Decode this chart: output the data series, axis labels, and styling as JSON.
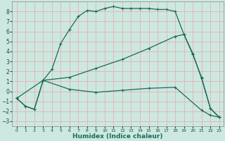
{
  "xlabel": "Humidex (Indice chaleur)",
  "xlim": [
    -0.5,
    23.5
  ],
  "ylim": [
    -3.5,
    9.0
  ],
  "bg_color": "#cce8e0",
  "line_color": "#1a6b5a",
  "grid_color": "#e8b0b0",
  "line1_x": [
    0,
    1,
    2,
    3,
    4,
    5,
    6,
    7,
    8,
    9,
    10,
    11,
    12,
    13,
    14,
    15,
    16,
    17,
    18,
    19,
    20,
    21,
    22,
    23
  ],
  "line1_y": [
    -0.7,
    -1.5,
    -1.8,
    1.1,
    2.2,
    4.8,
    6.2,
    7.5,
    8.1,
    8.0,
    8.3,
    8.5,
    8.3,
    8.3,
    8.3,
    8.3,
    8.2,
    8.2,
    8.0,
    5.7,
    3.7,
    1.4,
    -1.7,
    -2.6
  ],
  "line2_x": [
    0,
    1,
    2,
    3,
    6,
    9,
    12,
    15,
    18,
    21,
    22,
    23
  ],
  "line2_y": [
    -0.7,
    -1.5,
    -1.8,
    1.1,
    0.2,
    -0.1,
    0.1,
    0.3,
    0.4,
    -1.9,
    -2.4,
    -2.6
  ],
  "line3_x": [
    0,
    3,
    6,
    9,
    12,
    15,
    18,
    19,
    20,
    21,
    22,
    23
  ],
  "line3_y": [
    -0.7,
    1.1,
    1.4,
    2.3,
    3.2,
    4.3,
    5.5,
    5.7,
    3.8,
    1.3,
    -1.7,
    -2.6
  ],
  "yticks": [
    -3,
    -2,
    -1,
    0,
    1,
    2,
    3,
    4,
    5,
    6,
    7,
    8
  ],
  "xticks": [
    0,
    1,
    2,
    3,
    4,
    5,
    6,
    7,
    8,
    9,
    10,
    11,
    12,
    13,
    14,
    15,
    16,
    17,
    18,
    19,
    20,
    21,
    22,
    23
  ]
}
